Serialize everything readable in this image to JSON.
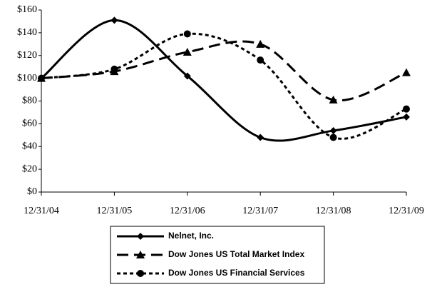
{
  "chart_data": {
    "type": "line",
    "categories": [
      "12/31/04",
      "12/31/05",
      "12/31/06",
      "12/31/07",
      "12/31/08",
      "12/31/09"
    ],
    "ylim": [
      0,
      160
    ],
    "yticks": [
      {
        "value": 0,
        "label": "$0"
      },
      {
        "value": 20,
        "label": "$20"
      },
      {
        "value": 40,
        "label": "$40"
      },
      {
        "value": 60,
        "label": "$60"
      },
      {
        "value": 80,
        "label": "$80"
      },
      {
        "value": 100,
        "label": "$100"
      },
      {
        "value": 120,
        "label": "$120"
      },
      {
        "value": 140,
        "label": "$140"
      },
      {
        "value": 160,
        "label": "$160"
      }
    ],
    "grid": false,
    "series": [
      {
        "name": "Nelnet, Inc.",
        "color": "#000000",
        "dash": "solid",
        "marker": "diamond",
        "values": [
          100,
          151,
          102,
          48,
          54,
          66
        ]
      },
      {
        "name": "Dow Jones US Total Market Index",
        "color": "#000000",
        "dash": "dashed",
        "marker": "triangle",
        "values": [
          100,
          106,
          123,
          130,
          81,
          105
        ]
      },
      {
        "name": "Dow Jones US Financial Services",
        "color": "#000000",
        "dash": "dotted",
        "marker": "circle",
        "values": [
          100,
          108,
          139,
          116,
          48,
          73
        ]
      }
    ]
  }
}
